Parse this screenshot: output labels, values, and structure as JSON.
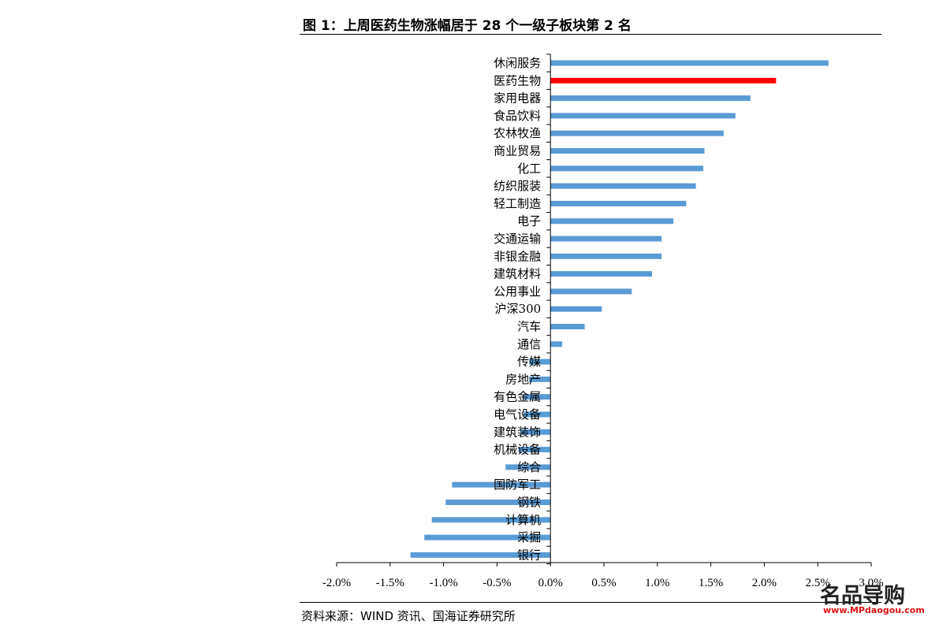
{
  "title": "图 1：上周医药生物涨幅居于 28 个一级子板块第 2 名",
  "source": "资料来源：WIND 资讯、国海证券研究所",
  "watermark": {
    "text": "名品导购",
    "url": "www.MPdaogou.com"
  },
  "colors": {
    "bar": "#5B9BD5",
    "highlight": "#FF0000",
    "axis": "#000000"
  },
  "chart_data": {
    "type": "bar",
    "orientation": "horizontal",
    "categories": [
      "休闲服务",
      "医药生物",
      "家用电器",
      "食品饮料",
      "农林牧渔",
      "商业贸易",
      "化工",
      "纺织服装",
      "轻工制造",
      "电子",
      "交通运输",
      "非银金融",
      "建筑材料",
      "公用事业",
      "沪深300",
      "汽车",
      "通信",
      "传媒",
      "房地产",
      "有色金属",
      "电气设备",
      "建筑装饰",
      "机械设备",
      "综合",
      "国防军工",
      "钢铁",
      "计算机",
      "采掘",
      "银行"
    ],
    "values": [
      2.6,
      2.11,
      1.87,
      1.73,
      1.62,
      1.44,
      1.43,
      1.36,
      1.27,
      1.15,
      1.04,
      1.04,
      0.95,
      0.76,
      0.48,
      0.32,
      0.11,
      -0.2,
      -0.2,
      -0.25,
      -0.25,
      -0.28,
      -0.3,
      -0.42,
      -0.92,
      -0.98,
      -1.11,
      -1.18,
      -1.31
    ],
    "highlight": "医药生物",
    "xlim": [
      -2.0,
      3.0
    ],
    "xticks": [
      "-2.0%",
      "-1.5%",
      "-1.0%",
      "-0.5%",
      "0.0%",
      "0.5%",
      "1.0%",
      "1.5%",
      "2.0%",
      "2.5%",
      "3.0%"
    ],
    "xtick_values": [
      -2.0,
      -1.5,
      -1.0,
      -0.5,
      0.0,
      0.5,
      1.0,
      1.5,
      2.0,
      2.5,
      3.0
    ],
    "grid": false,
    "legend": "none"
  }
}
